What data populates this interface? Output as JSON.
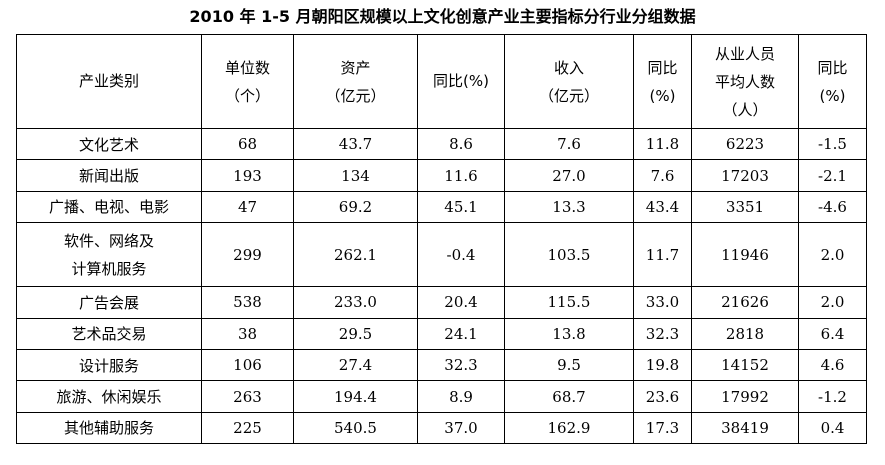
{
  "title": "2010 年 1-5 月朝阳区规模以上文化创意产业主要指标分行业分组数据",
  "headers": {
    "category": "产业类别",
    "units": [
      "单位数",
      "（个）"
    ],
    "assets": [
      "资产",
      "（亿元）"
    ],
    "assets_yoy": "同比(%)",
    "revenue": [
      "收入",
      "（亿元）"
    ],
    "revenue_yoy": [
      "同比",
      "(%)"
    ],
    "employees": [
      "从业人员",
      "平均人数",
      "（人）"
    ],
    "employees_yoy": [
      "同比",
      "(%)"
    ]
  },
  "rows": [
    {
      "category": [
        "文化艺术"
      ],
      "units": "68",
      "assets": "43.7",
      "assets_yoy": "8.6",
      "revenue": "7.6",
      "revenue_yoy": "11.8",
      "employees": "6223",
      "employees_yoy": "-1.5"
    },
    {
      "category": [
        "新闻出版"
      ],
      "units": "193",
      "assets": "134",
      "assets_yoy": "11.6",
      "revenue": "27.0",
      "revenue_yoy": "7.6",
      "employees": "17203",
      "employees_yoy": "-2.1"
    },
    {
      "category": [
        "广播、电视、电影"
      ],
      "units": "47",
      "assets": "69.2",
      "assets_yoy": "45.1",
      "revenue": "13.3",
      "revenue_yoy": "43.4",
      "employees": "3351",
      "employees_yoy": "-4.6"
    },
    {
      "category": [
        "软件、网络及",
        "计算机服务"
      ],
      "units": "299",
      "assets": "262.1",
      "assets_yoy": "-0.4",
      "revenue": "103.5",
      "revenue_yoy": "11.7",
      "employees": "11946",
      "employees_yoy": "2.0"
    },
    {
      "category": [
        "广告会展"
      ],
      "units": "538",
      "assets": "233.0",
      "assets_yoy": "20.4",
      "revenue": "115.5",
      "revenue_yoy": "33.0",
      "employees": "21626",
      "employees_yoy": "2.0"
    },
    {
      "category": [
        "艺术品交易"
      ],
      "units": "38",
      "assets": "29.5",
      "assets_yoy": "24.1",
      "revenue": "13.8",
      "revenue_yoy": "32.3",
      "employees": "2818",
      "employees_yoy": "6.4"
    },
    {
      "category": [
        "设计服务"
      ],
      "units": "106",
      "assets": "27.4",
      "assets_yoy": "32.3",
      "revenue": "9.5",
      "revenue_yoy": "19.8",
      "employees": "14152",
      "employees_yoy": "4.6"
    },
    {
      "category": [
        "旅游、休闲娱乐"
      ],
      "units": "263",
      "assets": "194.4",
      "assets_yoy": "8.9",
      "revenue": "68.7",
      "revenue_yoy": "23.6",
      "employees": "17992",
      "employees_yoy": "-1.2"
    },
    {
      "category": [
        "其他辅助服务"
      ],
      "units": "225",
      "assets": "540.5",
      "assets_yoy": "37.0",
      "revenue": "162.9",
      "revenue_yoy": "17.3",
      "employees": "38419",
      "employees_yoy": "0.4"
    }
  ]
}
